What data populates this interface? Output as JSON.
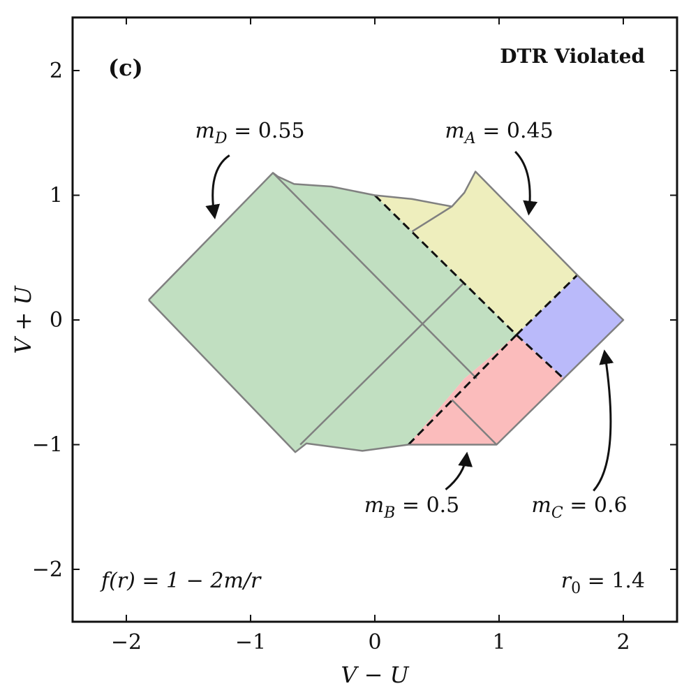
{
  "panel_label": "(c)",
  "title": "DTR Violated",
  "colors": {
    "green": "#c1dfc1",
    "yellow": "#eeeebd",
    "blue": "#babafa",
    "red": "#fbbcbc",
    "outline": "#808080",
    "ink": "#111111"
  },
  "chart_data": {
    "type": "diagram",
    "xlabel": "V − U",
    "ylabel": "V + U",
    "xlim": [
      -2.45,
      2.45
    ],
    "ylim": [
      -2.45,
      2.45
    ],
    "xticks": [
      {
        "value": -2,
        "label": "−2"
      },
      {
        "value": -1,
        "label": "−1"
      },
      {
        "value": 0,
        "label": "0"
      },
      {
        "value": 1,
        "label": "1"
      },
      {
        "value": 2,
        "label": "2"
      }
    ],
    "yticks": [
      {
        "value": -2,
        "label": "−2"
      },
      {
        "value": -1,
        "label": "−1"
      },
      {
        "value": 0,
        "label": "0"
      },
      {
        "value": 1,
        "label": "1"
      },
      {
        "value": 2,
        "label": "2"
      }
    ],
    "regions": [
      {
        "id": "D",
        "color": "green",
        "points": [
          [
            -1.82,
            0.16
          ],
          [
            -0.82,
            1.18
          ],
          [
            -0.78,
            1.15
          ],
          [
            -0.65,
            1.09
          ],
          [
            -0.35,
            1.07
          ],
          [
            0.0,
            1.0
          ],
          [
            0.3,
            0.71
          ],
          [
            0.72,
            0.3
          ],
          [
            1.14,
            -0.12
          ],
          [
            0.72,
            -0.47
          ],
          [
            0.27,
            -1.0
          ],
          [
            -0.1,
            -1.05
          ],
          [
            -0.55,
            -0.99
          ],
          [
            -0.64,
            -1.06
          ]
        ]
      },
      {
        "id": "A",
        "color": "yellow",
        "points": [
          [
            0.0,
            1.0
          ],
          [
            0.3,
            0.97
          ],
          [
            0.62,
            0.91
          ],
          [
            0.72,
            1.02
          ],
          [
            0.81,
            1.19
          ],
          [
            1.63,
            0.36
          ],
          [
            1.14,
            -0.12
          ],
          [
            0.72,
            0.3
          ],
          [
            0.3,
            0.71
          ]
        ]
      },
      {
        "id": "C",
        "color": "blue",
        "points": [
          [
            1.14,
            -0.12
          ],
          [
            1.63,
            0.36
          ],
          [
            2.0,
            0.0
          ],
          [
            1.52,
            -0.47
          ]
        ]
      },
      {
        "id": "B",
        "color": "red",
        "points": [
          [
            0.27,
            -1.0
          ],
          [
            0.72,
            -0.47
          ],
          [
            1.14,
            -0.12
          ],
          [
            1.52,
            -0.47
          ],
          [
            0.98,
            -1.0
          ]
        ]
      }
    ],
    "boundary": [
      [
        -1.82,
        0.16
      ],
      [
        -0.82,
        1.18
      ],
      [
        -0.78,
        1.15
      ],
      [
        -0.65,
        1.09
      ],
      [
        -0.35,
        1.07
      ],
      [
        0.0,
        1.0
      ],
      [
        0.3,
        0.97
      ],
      [
        0.62,
        0.91
      ],
      [
        0.72,
        1.02
      ],
      [
        0.81,
        1.19
      ],
      [
        1.63,
        0.36
      ],
      [
        2.0,
        0.0
      ],
      [
        1.52,
        -0.47
      ],
      [
        0.98,
        -1.0
      ],
      [
        0.27,
        -1.0
      ],
      [
        -0.1,
        -1.05
      ],
      [
        -0.55,
        -0.99
      ],
      [
        -0.64,
        -1.06
      ],
      [
        -1.82,
        0.16
      ]
    ],
    "inner_lines": [
      [
        [
          -0.82,
          1.18
        ],
        [
          0.82,
          -0.47
        ]
      ],
      [
        [
          -0.6,
          -1.0
        ],
        [
          0.72,
          0.3
        ]
      ],
      [
        [
          0.62,
          0.91
        ],
        [
          0.3,
          0.71
        ]
      ],
      [
        [
          0.62,
          -0.64
        ],
        [
          0.98,
          -1.0
        ]
      ]
    ],
    "dashed_lines": [
      [
        [
          0.0,
          1.0
        ],
        [
          1.14,
          -0.12
        ]
      ],
      [
        [
          1.14,
          -0.12
        ],
        [
          1.63,
          0.36
        ]
      ],
      [
        [
          1.14,
          -0.12
        ],
        [
          1.52,
          -0.47
        ]
      ],
      [
        [
          0.27,
          -1.0
        ],
        [
          1.14,
          -0.12
        ]
      ]
    ],
    "annotations": [
      {
        "id": "mD",
        "text": "m_D = 0.55",
        "anchor": [
          -1.19,
          1.51
        ],
        "arrow": [
          [
            -1.17,
            1.32
          ],
          [
            -1.35,
            1.2
          ],
          [
            -1.29,
            0.83
          ]
        ]
      },
      {
        "id": "mA",
        "text": "m_A = 0.45",
        "anchor": [
          0.85,
          1.51
        ],
        "arrow": [
          [
            1.13,
            1.35
          ],
          [
            1.28,
            1.2
          ],
          [
            1.24,
            0.86
          ]
        ]
      },
      {
        "id": "mB",
        "text": "m_B = 0.5",
        "anchor": [
          0.37,
          -1.55
        ],
        "arrow": [
          [
            0.57,
            -1.36
          ],
          [
            0.72,
            -1.24
          ],
          [
            0.74,
            -1.08
          ]
        ]
      },
      {
        "id": "mC",
        "text": "m_C = 0.6",
        "anchor": [
          1.43,
          -1.55
        ],
        "arrow": [
          [
            1.76,
            -1.37
          ],
          [
            1.98,
            -1.12
          ],
          [
            1.85,
            -0.26
          ]
        ]
      }
    ],
    "text_annotations": [
      {
        "id": "fr",
        "text": "f(r) = 1 − 2m/r",
        "position": "bottom-left"
      },
      {
        "id": "r0",
        "text": "r₀ = 1.4",
        "position": "bottom-right"
      }
    ]
  },
  "labels": {
    "mD": {
      "sym": "m",
      "sub": "D",
      "eq": " = ",
      "val": "0.55"
    },
    "mA": {
      "sym": "m",
      "sub": "A",
      "eq": " = ",
      "val": "0.45"
    },
    "mB": {
      "sym": "m",
      "sub": "B",
      "eq": " = ",
      "val": "0.5"
    },
    "mC": {
      "sym": "m",
      "sub": "C",
      "eq": " = ",
      "val": "0.6"
    },
    "fr": "f(r) = 1 − 2m/r",
    "r0": {
      "sym": "r",
      "sub": "0",
      "eq": " = ",
      "val": "1.4"
    }
  }
}
